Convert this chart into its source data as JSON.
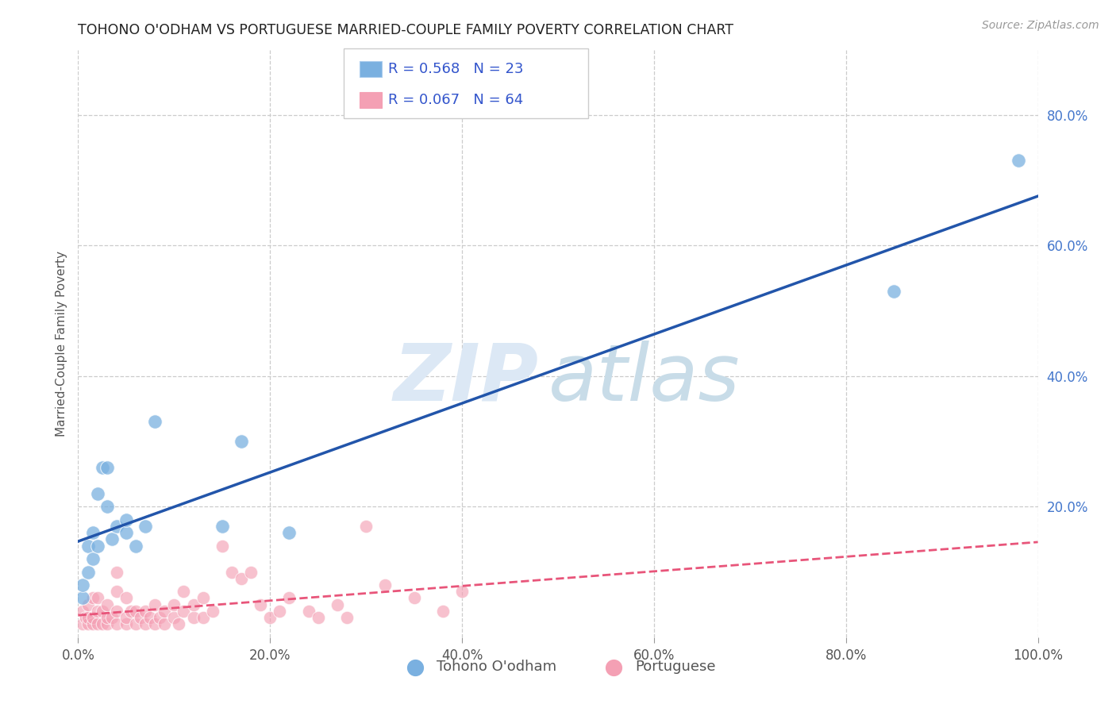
{
  "title": "TOHONO O'ODHAM VS PORTUGUESE MARRIED-COUPLE FAMILY POVERTY CORRELATION CHART",
  "source": "Source: ZipAtlas.com",
  "ylabel": "Married-Couple Family Poverty",
  "watermark_zip": "ZIP",
  "watermark_atlas": "atlas",
  "xlim": [
    0,
    1.0
  ],
  "ylim": [
    0,
    0.9
  ],
  "xticks": [
    0,
    0.2,
    0.4,
    0.6,
    0.8,
    1.0
  ],
  "xticklabels": [
    "0.0%",
    "20.0%",
    "40.0%",
    "60.0%",
    "80.0%",
    "100.0%"
  ],
  "yticks": [
    0.2,
    0.4,
    0.6,
    0.8
  ],
  "yticklabels": [
    "20.0%",
    "40.0%",
    "60.0%",
    "80.0%"
  ],
  "tohono_color": "#7ab0e0",
  "portuguese_color": "#f4a0b4",
  "tohono_line_color": "#2255aa",
  "portuguese_line_color": "#e8557a",
  "tohono_R": 0.568,
  "tohono_N": 23,
  "portuguese_R": 0.067,
  "portuguese_N": 64,
  "tohono_x": [
    0.005,
    0.005,
    0.01,
    0.01,
    0.015,
    0.015,
    0.02,
    0.02,
    0.025,
    0.03,
    0.03,
    0.035,
    0.04,
    0.05,
    0.05,
    0.06,
    0.07,
    0.08,
    0.15,
    0.17,
    0.22,
    0.85,
    0.98
  ],
  "tohono_y": [
    0.06,
    0.08,
    0.1,
    0.14,
    0.12,
    0.16,
    0.14,
    0.22,
    0.26,
    0.2,
    0.26,
    0.15,
    0.17,
    0.16,
    0.18,
    0.14,
    0.17,
    0.33,
    0.17,
    0.3,
    0.16,
    0.53,
    0.73
  ],
  "portuguese_x": [
    0.005,
    0.005,
    0.008,
    0.01,
    0.01,
    0.01,
    0.015,
    0.015,
    0.015,
    0.02,
    0.02,
    0.02,
    0.025,
    0.025,
    0.03,
    0.03,
    0.03,
    0.035,
    0.04,
    0.04,
    0.04,
    0.04,
    0.05,
    0.05,
    0.05,
    0.055,
    0.06,
    0.06,
    0.065,
    0.07,
    0.07,
    0.075,
    0.08,
    0.08,
    0.085,
    0.09,
    0.09,
    0.1,
    0.1,
    0.105,
    0.11,
    0.11,
    0.12,
    0.12,
    0.13,
    0.13,
    0.14,
    0.15,
    0.16,
    0.17,
    0.18,
    0.19,
    0.2,
    0.21,
    0.22,
    0.24,
    0.25,
    0.27,
    0.28,
    0.3,
    0.32,
    0.35,
    0.38,
    0.4
  ],
  "portuguese_y": [
    0.02,
    0.04,
    0.03,
    0.02,
    0.03,
    0.05,
    0.02,
    0.03,
    0.06,
    0.02,
    0.04,
    0.06,
    0.02,
    0.04,
    0.02,
    0.03,
    0.05,
    0.03,
    0.02,
    0.04,
    0.07,
    0.1,
    0.02,
    0.03,
    0.06,
    0.04,
    0.02,
    0.04,
    0.03,
    0.02,
    0.04,
    0.03,
    0.02,
    0.05,
    0.03,
    0.02,
    0.04,
    0.03,
    0.05,
    0.02,
    0.04,
    0.07,
    0.03,
    0.05,
    0.03,
    0.06,
    0.04,
    0.14,
    0.1,
    0.09,
    0.1,
    0.05,
    0.03,
    0.04,
    0.06,
    0.04,
    0.03,
    0.05,
    0.03,
    0.17,
    0.08,
    0.06,
    0.04,
    0.07
  ],
  "background_color": "#ffffff",
  "grid_color": "#cccccc",
  "title_color": "#222222",
  "right_tick_color": "#4477cc",
  "legend_stat_color": "#3355cc",
  "source_color": "#999999"
}
